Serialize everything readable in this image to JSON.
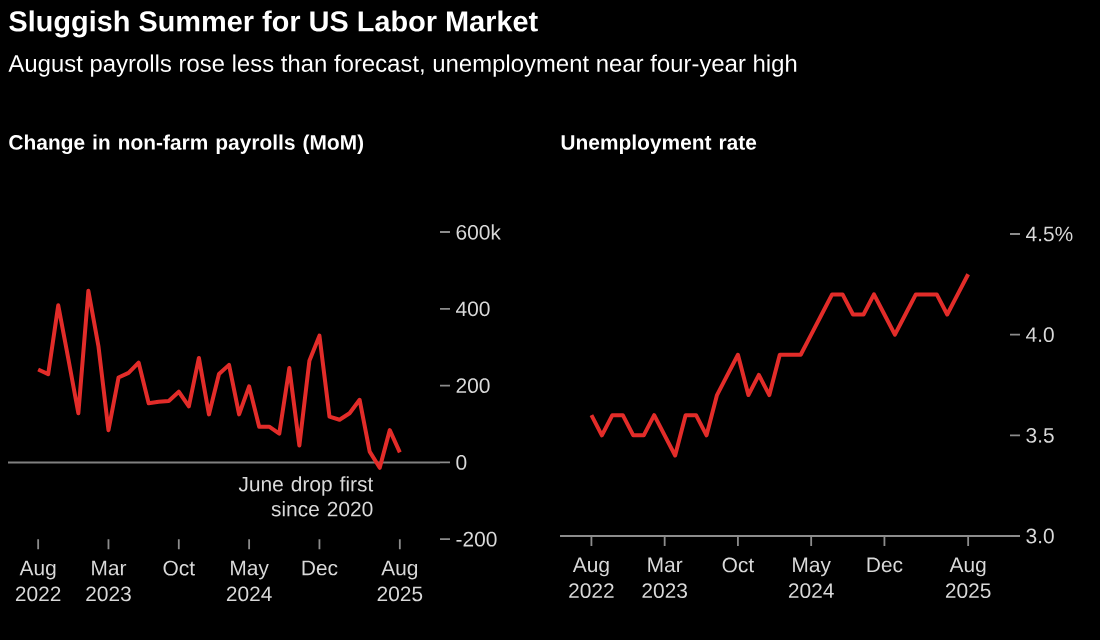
{
  "chart_data": [
    {
      "type": "line",
      "title": "Sluggish Summer for US Labor Market",
      "subtitle": "August payrolls rose less than forecast, unemployment near four-year high",
      "ylabel": "Change in non-farm payrolls (MoM)",
      "x": [
        "2022-08",
        "2022-09",
        "2022-10",
        "2022-11",
        "2022-12",
        "2023-01",
        "2023-02",
        "2023-03",
        "2023-04",
        "2023-05",
        "2023-06",
        "2023-07",
        "2023-08",
        "2023-09",
        "2023-10",
        "2023-11",
        "2023-12",
        "2024-01",
        "2024-02",
        "2024-03",
        "2024-04",
        "2024-05",
        "2024-06",
        "2024-07",
        "2024-08",
        "2024-09",
        "2024-10",
        "2024-11",
        "2024-12",
        "2025-01",
        "2025-02",
        "2025-03",
        "2025-04",
        "2025-05",
        "2025-06",
        "2025-07",
        "2025-08"
      ],
      "series": [
        {
          "color": "#e22c29",
          "values": [
            242,
            230,
            409,
            270,
            128,
            447,
            303,
            84,
            221,
            233,
            260,
            154,
            158,
            160,
            184,
            146,
            272,
            125,
            230,
            254,
            125,
            198,
            93,
            93,
            75,
            246,
            44,
            265,
            330,
            119,
            111,
            128,
            163,
            28,
            -14,
            84,
            26
          ]
        }
      ],
      "xlim": [
        "2022-05",
        "2025-12"
      ],
      "ylim": [
        -200,
        600
      ],
      "xticks": [
        {
          "value": "2022-08",
          "label": "Aug 2022"
        },
        {
          "value": "2023-03",
          "label": "Mar 2023"
        },
        {
          "value": "2023-10",
          "label": "Oct"
        },
        {
          "value": "2024-05",
          "label": "May 2024"
        },
        {
          "value": "2024-12",
          "label": "Dec"
        },
        {
          "value": "2025-08",
          "label": "Aug 2025"
        }
      ],
      "yticks": [
        {
          "value": 600,
          "label": "600k"
        },
        400,
        200,
        0,
        -200
      ],
      "ref_lines": [
        {
          "axis": "y",
          "value": 0,
          "color": "#808080"
        }
      ],
      "annotations": [
        {
          "text": "June drop first since 2020",
          "x": "2025-06",
          "y": -14
        }
      ]
    },
    {
      "type": "line",
      "ylabel": "Unemployment rate",
      "x": [
        "2022-08",
        "2022-09",
        "2022-10",
        "2022-11",
        "2022-12",
        "2023-01",
        "2023-02",
        "2023-03",
        "2023-04",
        "2023-05",
        "2023-06",
        "2023-07",
        "2023-08",
        "2023-09",
        "2023-10",
        "2023-11",
        "2023-12",
        "2024-01",
        "2024-02",
        "2024-03",
        "2024-04",
        "2024-05",
        "2024-06",
        "2024-07",
        "2024-08",
        "2024-09",
        "2024-10",
        "2024-11",
        "2024-12",
        "2025-01",
        "2025-02",
        "2025-03",
        "2025-04",
        "2025-05",
        "2025-06",
        "2025-07",
        "2025-08"
      ],
      "series": [
        {
          "color": "#e22c29",
          "values": [
            3.6,
            3.5,
            3.6,
            3.6,
            3.5,
            3.5,
            3.6,
            3.5,
            3.4,
            3.6,
            3.6,
            3.5,
            3.7,
            3.8,
            3.9,
            3.7,
            3.8,
            3.7,
            3.9,
            3.9,
            3.9,
            4.0,
            4.1,
            4.2,
            4.2,
            4.1,
            4.1,
            4.2,
            4.1,
            4.0,
            4.1,
            4.2,
            4.2,
            4.2,
            4.1,
            4.2,
            4.3
          ]
        }
      ],
      "xlim": [
        "2022-05",
        "2025-12"
      ],
      "ylim": [
        3.0,
        4.5
      ],
      "xticks": [
        {
          "value": "2022-08",
          "label": "Aug 2022"
        },
        {
          "value": "2023-03",
          "label": "Mar 2023"
        },
        {
          "value": "2023-10",
          "label": "Oct"
        },
        {
          "value": "2024-05",
          "label": "May 2024"
        },
        {
          "value": "2024-12",
          "label": "Dec"
        },
        {
          "value": "2025-08",
          "label": "Aug 2025"
        }
      ],
      "yticks": [
        {
          "value": 4.5,
          "label": "4.5%"
        },
        {
          "value": 4,
          "label": "4.0"
        },
        {
          "value": 3.5,
          "label": "3.5"
        },
        {
          "value": 3,
          "label": "3.0"
        }
      ]
    }
  ]
}
